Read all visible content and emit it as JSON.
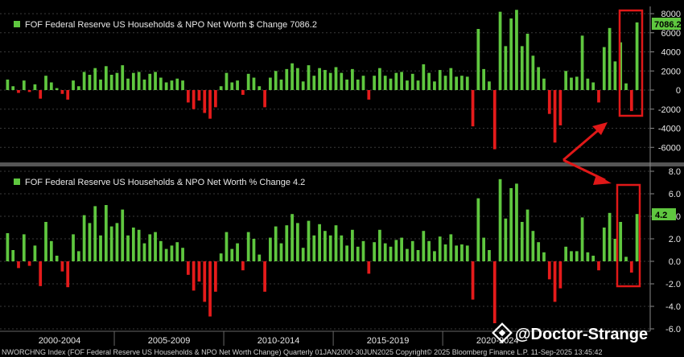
{
  "colors": {
    "positive": "#5fc73f",
    "negative": "#e51b1b",
    "highlight_box": "#e01818",
    "arrow": "#e01818",
    "last_label_bg": "#5fc73f",
    "grid": "#3a3a3a",
    "background": "#000000"
  },
  "chart_data": [
    {
      "type": "bar",
      "legend_label": "FOF Federal Reserve US Households & NPO Net Worth $ Change 7086.2",
      "ylim": [
        -8000,
        8000
      ],
      "yticks": [
        "-6000",
        "-4000",
        "-2000",
        "0",
        "2000",
        "4000",
        "6000",
        "8000"
      ],
      "ytick_values": [
        -6000,
        -4000,
        -2000,
        0,
        2000,
        4000,
        6000,
        8000
      ],
      "last_value_label": "7086.2",
      "values": [
        1100,
        400,
        -300,
        1000,
        -200,
        600,
        -900,
        1500,
        800,
        200,
        -400,
        -1000,
        1000,
        400,
        1900,
        1600,
        2300,
        1100,
        2500,
        1600,
        1800,
        2600,
        1200,
        1800,
        1900,
        1100,
        1700,
        1900,
        1300,
        800,
        1000,
        1200,
        1000,
        -1300,
        -2000,
        -1100,
        -2400,
        -3000,
        -1800,
        400,
        1800,
        800,
        1000,
        -500,
        1700,
        1300,
        400,
        -1800,
        1300,
        2000,
        1100,
        2200,
        2800,
        2300,
        900,
        2600,
        1500,
        2300,
        2100,
        1800,
        2400,
        1800,
        1100,
        2200,
        1100,
        1500,
        -1000,
        1500,
        2300,
        1500,
        1200,
        1800,
        1900,
        1000,
        1700,
        1000,
        2700,
        1800,
        900,
        2100,
        1500,
        2300,
        1400,
        1500,
        1400,
        -3800,
        6400,
        2200,
        900,
        -6200,
        8200,
        4600,
        7500,
        8400,
        4600,
        5900,
        3600,
        2400,
        1200,
        -2500,
        -5500,
        -3700,
        2000,
        1300,
        1400,
        5700,
        1200,
        800,
        -1300,
        4500,
        6500,
        3000,
        5000,
        700,
        -2200,
        7086.2
      ]
    },
    {
      "type": "bar",
      "legend_label": "FOF Federal Reserve US Households & NPO Net Worth % Change 4.2",
      "ylim": [
        -6,
        8
      ],
      "yticks": [
        "-6.0",
        "-4.0",
        "-2.0",
        "0.0",
        "2.0",
        "4.0",
        "6.0",
        "8.0"
      ],
      "ytick_values": [
        -6,
        -4,
        -2,
        0,
        2,
        4,
        6,
        8
      ],
      "last_value_label": "4.2",
      "values": [
        2.5,
        1.0,
        -0.6,
        2.4,
        -0.4,
        1.4,
        -2.2,
        3.5,
        1.8,
        0.5,
        -0.9,
        -2.3,
        2.4,
        0.9,
        4.1,
        3.4,
        4.9,
        2.3,
        5.0,
        3.1,
        3.4,
        4.6,
        2.3,
        3.0,
        2.8,
        1.6,
        2.4,
        2.6,
        1.8,
        1.1,
        1.4,
        1.7,
        1.2,
        -1.2,
        -2.6,
        -1.8,
        -3.6,
        -4.9,
        -2.7,
        0.7,
        2.6,
        1.1,
        1.6,
        -0.8,
        2.6,
        2.0,
        0.6,
        -2.7,
        2.1,
        3.1,
        1.6,
        3.2,
        4.2,
        3.4,
        1.2,
        3.6,
        2.3,
        3.3,
        2.7,
        2.3,
        3.2,
        2.3,
        1.4,
        2.8,
        1.3,
        1.8,
        -1.1,
        1.7,
        2.8,
        1.6,
        1.3,
        1.9,
        2.1,
        1.1,
        1.8,
        1.0,
        2.7,
        1.8,
        0.9,
        2.2,
        1.5,
        2.4,
        1.4,
        1.5,
        1.4,
        -3.4,
        5.6,
        2.1,
        1.0,
        -5.5,
        7.3,
        3.8,
        6.5,
        6.9,
        3.5,
        4.6,
        2.7,
        1.7,
        0.8,
        -1.6,
        -3.6,
        -2.4,
        1.3,
        0.9,
        0.9,
        3.9,
        0.8,
        0.5,
        -0.8,
        3.0,
        4.3,
        2.0,
        3.5,
        0.4,
        -1.0,
        4.2
      ]
    }
  ],
  "x_axis": {
    "period_labels": [
      "2000-2004",
      "2005-2009",
      "2010-2014",
      "2015-2019",
      "2020-2024"
    ]
  },
  "footer": {
    "text": "NWORCHNG Index (FOF Federal Reserve US Households & NPO Net Worth Change)  Quarterly 01JAN2000-30JUN2025 Copyright© 2025 Bloomberg Finance L.P.  11-Sep-2025 13:45:42"
  },
  "watermark": {
    "text": "@Doctor-Strange",
    "icon": "diamond-logo-icon"
  }
}
